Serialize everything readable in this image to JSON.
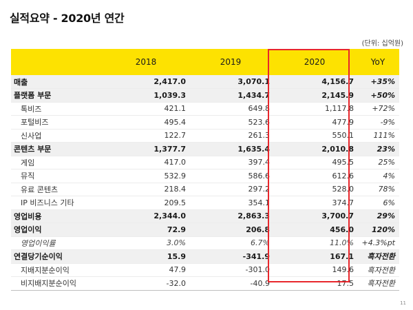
{
  "title": "실적요약 - 2020년 연간",
  "unit_note": "(단위: 십억원)",
  "headers": [
    "",
    "2018",
    "2019",
    "2020",
    "YoY"
  ],
  "rows": [
    {
      "type": "major",
      "label": "매출",
      "v2018": "2,417.0",
      "v2019": "3,070.1",
      "v2020": "4,156.7",
      "yoy": "+35%"
    },
    {
      "type": "major",
      "label": "플랫폼 부문",
      "v2018": "1,039.3",
      "v2019": "1,434.7",
      "v2020": "2,145.9",
      "yoy": "+50%"
    },
    {
      "type": "minor",
      "label": "톡비즈",
      "v2018": "421.1",
      "v2019": "649.8",
      "v2020": "1,117.8",
      "yoy": "+72%"
    },
    {
      "type": "minor",
      "label": "포털비즈",
      "v2018": "495.4",
      "v2019": "523.6",
      "v2020": "477.9",
      "yoy": "-9%"
    },
    {
      "type": "minor",
      "label": "신사업",
      "v2018": "122.7",
      "v2019": "261.3",
      "v2020": "550.1",
      "yoy": "111%"
    },
    {
      "type": "major",
      "label": "콘텐츠 부문",
      "v2018": "1,377.7",
      "v2019": "1,635.4",
      "v2020": "2,010.8",
      "yoy": "23%"
    },
    {
      "type": "minor",
      "label": "게임",
      "v2018": "417.0",
      "v2019": "397.4",
      "v2020": "495.5",
      "yoy": "25%"
    },
    {
      "type": "minor",
      "label": "뮤직",
      "v2018": "532.9",
      "v2019": "586.6",
      "v2020": "612.6",
      "yoy": "4%"
    },
    {
      "type": "minor",
      "label": "유료 콘텐츠",
      "v2018": "218.4",
      "v2019": "297.2",
      "v2020": "528.0",
      "yoy": "78%"
    },
    {
      "type": "minor",
      "label": "IP 비즈니스 기타",
      "v2018": "209.5",
      "v2019": "354.1",
      "v2020": "374.7",
      "yoy": "6%"
    },
    {
      "type": "major",
      "label": "영업비용",
      "v2018": "2,344.0",
      "v2019": "2,863.3",
      "v2020": "3,700.7",
      "yoy": "29%"
    },
    {
      "type": "major",
      "label": "영업이익",
      "v2018": "72.9",
      "v2019": "206.8",
      "v2020": "456.0",
      "yoy": "120%"
    },
    {
      "type": "minor italic",
      "label": "영업이익률",
      "v2018": "3.0%",
      "v2019": "6.7%",
      "v2020": "11.0%",
      "yoy": "+4.3%pt"
    },
    {
      "type": "major",
      "label": "연결당기순이익",
      "v2018": "15.9",
      "v2019": "-341.9",
      "v2020": "167.1",
      "yoy": "흑자전환"
    },
    {
      "type": "minor",
      "label": "지배지분순이익",
      "v2018": "47.9",
      "v2019": "-301.0",
      "v2020": "149.6",
      "yoy": "흑자전환"
    },
    {
      "type": "minor last",
      "label": "비지배지분순이익",
      "v2018": "-32.0",
      "v2019": "-40.9",
      "v2020": "17.5",
      "yoy": "흑자전환"
    }
  ],
  "page_number": "11",
  "colors": {
    "header_bg": "#fde201",
    "highlight_border": "#e8262b",
    "major_row_bg": "#f0f0f0"
  }
}
